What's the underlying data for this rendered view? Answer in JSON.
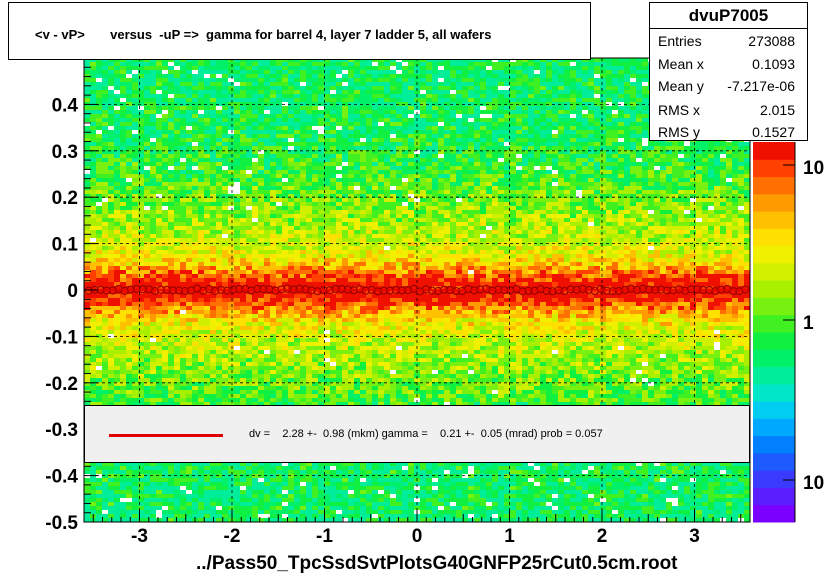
{
  "title": "<v - vP>       versus  -uP =>  gamma for barrel 4, layer 7 ladder 5, all wafers",
  "stats": {
    "name": "dvuP7005",
    "rows": [
      {
        "key": "Entries",
        "value": "273088"
      },
      {
        "key": "Mean x",
        "value": "0.1093"
      },
      {
        "key": "Mean y",
        "value": "-7.217e-06"
      },
      {
        "key": "RMS x",
        "value": "2.015"
      },
      {
        "key": "RMS y",
        "value": "0.1527"
      }
    ]
  },
  "fit_legend": "dv =    2.28 +-  0.98 (mkm) gamma =    0.21 +-  0.05 (mrad) prob = 0.057",
  "file_label": "../Pass50_TpcSsdSvtPlotsG40GNFP25rCut0.5cm.root",
  "colors": {
    "fit_line": "#e00000",
    "frame": "#000000",
    "grid": "#000000"
  },
  "chart_data": {
    "type": "heatmap",
    "xlim": [
      -3.6,
      3.6
    ],
    "ylim": [
      -0.5,
      0.5
    ],
    "x_ticks": [
      -3,
      -2,
      -1,
      0,
      1,
      2,
      3
    ],
    "x_tick_labels": [
      "-3",
      "-2",
      "-1",
      "0",
      "1",
      "2",
      "3"
    ],
    "y_ticks": [
      -0.5,
      -0.4,
      -0.3,
      -0.2,
      -0.1,
      0,
      0.1,
      0.2,
      0.3,
      0.4
    ],
    "y_tick_labels": [
      "-0.5",
      "-0.4",
      "-0.3",
      "-0.2",
      "-0.1",
      "0",
      "0.1",
      "0.2",
      "0.3",
      "0.4"
    ],
    "z_scale": "log",
    "z_tick_labels": [
      "10",
      "1",
      "10"
    ],
    "grid": true,
    "profile_y": 0.0
  }
}
